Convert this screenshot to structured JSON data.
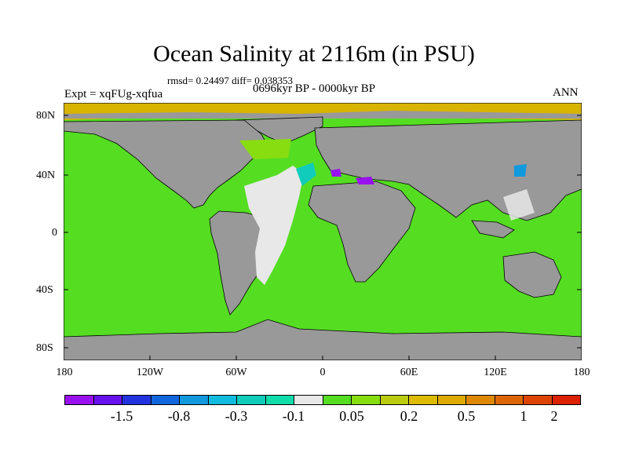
{
  "title": "Ocean Salinity at 2116m (in PSU)",
  "stats": "rmsd= 0.24497 diff= 0.038353",
  "experiment": "Expt = xqFUg-xqfua",
  "period": "0696kyr BP - 0000kyr BP",
  "season": "ANN",
  "lat_labels": [
    "80N",
    "40N",
    "0",
    "40S",
    "80S"
  ],
  "lon_labels": [
    "180",
    "120W",
    "60W",
    "0",
    "60E",
    "120E",
    "180"
  ],
  "colors": {
    "land": "#999999",
    "ocean_main": "#55dd22",
    "atlantic_anomaly": "#e8e8e8",
    "arctic": "#d8b400",
    "coast": "#000000"
  },
  "colorbar": {
    "colors": [
      "#9911ee",
      "#6611ee",
      "#2233dd",
      "#1166dd",
      "#1199dd",
      "#11bbdd",
      "#11ccbb",
      "#11ddaa",
      "#e8e8e8",
      "#55dd22",
      "#88dd11",
      "#bbcc11",
      "#ddbb00",
      "#ddaa00",
      "#dd8800",
      "#dd6600",
      "#dd4400",
      "#dd2200"
    ],
    "labels": [
      "-1.5",
      "-0.8",
      "-0.3",
      "-0.1",
      "0.05",
      "0.2",
      "0.5",
      "1",
      "2"
    ]
  }
}
